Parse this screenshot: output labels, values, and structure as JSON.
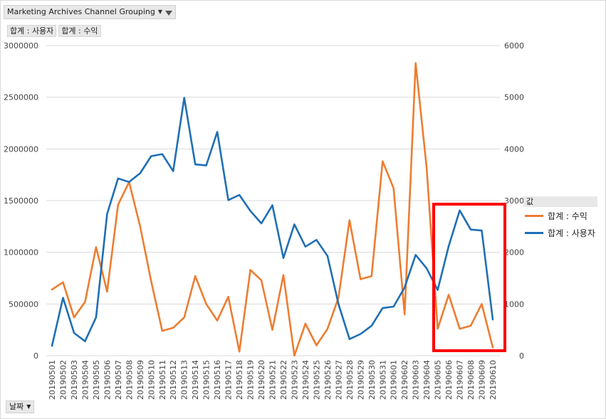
{
  "filter": {
    "label": "Marketing Archives Channel Grouping"
  },
  "value_fields": [
    "합계 : 사용자",
    "합계 : 수익"
  ],
  "axis_field": {
    "label": "날짜"
  },
  "legend": {
    "header": "값",
    "items": [
      {
        "label": "합계 : 수익",
        "color": "#ED7D31"
      },
      {
        "label": "합계 : 사용자",
        "color": "#1F6FB5"
      }
    ]
  },
  "chart_data": {
    "type": "line",
    "categories": [
      "20190501",
      "20190502",
      "20190503",
      "20190504",
      "20190505",
      "20190506",
      "20190507",
      "20190508",
      "20190509",
      "20190510",
      "20190511",
      "20190512",
      "20190513",
      "20190514",
      "20190515",
      "20190516",
      "20190517",
      "20190518",
      "20190519",
      "20190520",
      "20190521",
      "20190522",
      "20190523",
      "20190524",
      "20190525",
      "20190526",
      "20190527",
      "20190528",
      "20190529",
      "20190530",
      "20190531",
      "20190601",
      "20190602",
      "20190603",
      "20190604",
      "20190605",
      "20190606",
      "20190607",
      "20190608",
      "20190609",
      "20190610"
    ],
    "y_left": {
      "ylim": [
        0,
        3000000
      ],
      "ticks": [
        0,
        500000,
        1000000,
        1500000,
        2000000,
        2500000,
        3000000
      ]
    },
    "y_right": {
      "ylim": [
        0,
        6000
      ],
      "ticks": [
        0,
        1000,
        2000,
        3000,
        4000,
        5000,
        6000
      ]
    },
    "series": [
      {
        "name": "합계 : 수익",
        "axis": "left",
        "color": "#ED7D31",
        "values": [
          640000,
          710000,
          370000,
          520000,
          1050000,
          620000,
          1460000,
          1680000,
          1250000,
          720000,
          240000,
          270000,
          370000,
          770000,
          500000,
          340000,
          570000,
          40000,
          830000,
          730000,
          250000,
          780000,
          0,
          310000,
          100000,
          260000,
          560000,
          1310000,
          740000,
          770000,
          1880000,
          1620000,
          400000,
          2830000,
          1820000,
          260000,
          590000,
          260000,
          290000,
          500000,
          80000
        ]
      },
      {
        "name": "합계 : 사용자",
        "axis": "right",
        "color": "#1F6FB5",
        "values": [
          190,
          1120,
          440,
          280,
          740,
          2740,
          3430,
          3360,
          3530,
          3860,
          3900,
          3570,
          4990,
          3700,
          3680,
          4330,
          3010,
          3110,
          2800,
          2560,
          2910,
          1890,
          2540,
          2110,
          2240,
          1930,
          1000,
          320,
          420,
          580,
          920,
          950,
          1320,
          1950,
          1690,
          1270,
          2120,
          2810,
          2440,
          2420,
          700
        ]
      }
    ],
    "annotation": {
      "type": "rectangle",
      "color": "#FF0000"
    }
  }
}
